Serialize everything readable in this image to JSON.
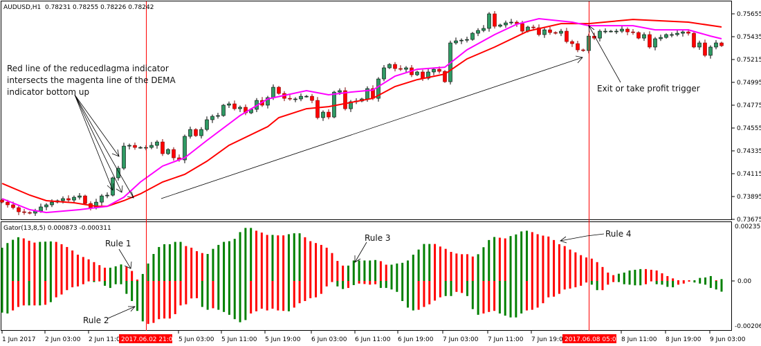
{
  "header": {
    "symbol_info": "AUDUSD,H1  0.78231 0.78255 0.78226 0.78242"
  },
  "indicator_header": {
    "label": "Gator(13,8,5) 0.000873 -0.000311"
  },
  "annotations": {
    "entry_text": [
      "Red line of the reducedlagma indicator",
      "intersects the magenta line of the DEMA",
      "indicator bottom up"
    ],
    "exit_text": "Exit or take profit trigger",
    "rule1": "Rule 1",
    "rule2": "Rule 2",
    "rule3": "Rule 3",
    "rule4": "Rule 4"
  },
  "colors": {
    "bull": "#2f9a64",
    "bear": "#ff0000",
    "reducedlagma_line": "#ff0000",
    "dema_line": "#ff00ff",
    "gator_green": "#008000",
    "gator_red": "#ff0000",
    "marker_line": "#ff0000"
  },
  "chart_data": [
    {
      "type": "candlestick",
      "title": "AUDUSD,H1",
      "price_axis_ticks": [
        "0.75655",
        "0.75435",
        "0.75215",
        "0.74995",
        "0.74775",
        "0.74555",
        "0.74335",
        "0.74115",
        "0.73895",
        "0.73675"
      ],
      "ylim": [
        0.73675,
        0.75655
      ],
      "time_axis_labels": [
        "1 Jun 2017",
        "2 Jun 03:00",
        "2 Jun 11:00",
        "5 Jun 03:00",
        "5 Jun 11:00",
        "5 Jun 19:00",
        "6 Jun 03:00",
        "6 Jun 11:00",
        "6 Jun 19:00",
        "7 Jun 03:00",
        "7 Jun 11:00",
        "7 Jun 19:00",
        "8 Jun 11:00",
        "8 Jun 19:00",
        "9 Jun 03:00"
      ],
      "highlighted_times": [
        "2017.06.02 21:00",
        "2017.06.08 05:00"
      ],
      "close": [
        0.73841,
        0.73815,
        0.73788,
        0.73748,
        0.73741,
        0.73735,
        0.73755,
        0.73795,
        0.73815,
        0.73841,
        0.73855,
        0.73875,
        0.73861,
        0.73888,
        0.73901,
        0.73828,
        0.73788,
        0.73841,
        0.73901,
        0.73908,
        0.74075,
        0.74168,
        0.74381,
        0.74388,
        0.74368,
        0.74368,
        0.74368,
        0.74388,
        0.74421,
        0.74308,
        0.74348,
        0.74268,
        0.74248,
        0.74475,
        0.74541,
        0.74481,
        0.74541,
        0.74635,
        0.74668,
        0.74675,
        0.74775,
        0.74788,
        0.74741,
        0.74755,
        0.74701,
        0.74735,
        0.74821,
        0.74775,
        0.74848,
        0.74948,
        0.74888,
        0.74841,
        0.74835,
        0.74835,
        0.74861,
        0.74861,
        0.74821,
        0.74655,
        0.74708,
        0.74661,
        0.74901,
        0.74915,
        0.74741,
        0.74808,
        0.74815,
        0.74835,
        0.74935,
        0.74841,
        0.75028,
        0.75135,
        0.75168,
        0.75128,
        0.75121,
        0.75135,
        0.75068,
        0.75095,
        0.75035,
        0.75095,
        0.75121,
        0.75101,
        0.75001,
        0.75375,
        0.75395,
        0.75401,
        0.75408,
        0.75468,
        0.75495,
        0.75515,
        0.75655,
        0.75535,
        0.75548,
        0.75568,
        0.75575,
        0.75561,
        0.75488,
        0.75528,
        0.75521,
        0.75455,
        0.75501,
        0.75475,
        0.75468,
        0.75488,
        0.75388,
        0.75368,
        0.75308,
        0.75301,
        0.75441,
        0.75421,
        0.75488,
        0.75488,
        0.75488,
        0.75488,
        0.75508,
        0.75481,
        0.75475,
        0.75421,
        0.75455,
        0.75335,
        0.75415,
        0.75428,
        0.75455,
        0.75455,
        0.75468,
        0.75481,
        0.75468,
        0.75335,
        0.75375,
        0.75255,
        0.75335,
        0.75375,
        0.75348
      ],
      "reducedlagma_line": [
        [
          0,
          0.74021
        ],
        [
          5,
          0.73908
        ],
        [
          8,
          0.73855
        ],
        [
          13,
          0.73835
        ],
        [
          17,
          0.73801
        ],
        [
          19,
          0.73801
        ],
        [
          22,
          0.73855
        ],
        [
          25,
          0.73921
        ],
        [
          29,
          0.74035
        ],
        [
          33,
          0.74108
        ],
        [
          37,
          0.74235
        ],
        [
          41,
          0.74388
        ],
        [
          48,
          0.74568
        ],
        [
          50,
          0.74655
        ],
        [
          55,
          0.74741
        ],
        [
          59,
          0.74761
        ],
        [
          63,
          0.74801
        ],
        [
          67,
          0.74841
        ],
        [
          71,
          0.74955
        ],
        [
          75,
          0.75021
        ],
        [
          80,
          0.75075
        ],
        [
          84,
          0.75221
        ],
        [
          89,
          0.75335
        ],
        [
          95,
          0.75488
        ],
        [
          101,
          0.75561
        ],
        [
          106,
          0.75561
        ],
        [
          114,
          0.75601
        ],
        [
          124,
          0.75575
        ],
        [
          130,
          0.75528
        ]
      ],
      "dema_line": [
        [
          0,
          0.73875
        ],
        [
          5,
          0.73768
        ],
        [
          8,
          0.73741
        ],
        [
          14,
          0.73768
        ],
        [
          19,
          0.73801
        ],
        [
          22,
          0.73888
        ],
        [
          25,
          0.74035
        ],
        [
          29,
          0.74188
        ],
        [
          33,
          0.74268
        ],
        [
          37,
          0.74435
        ],
        [
          43,
          0.74675
        ],
        [
          48,
          0.74835
        ],
        [
          55,
          0.74915
        ],
        [
          59,
          0.74875
        ],
        [
          63,
          0.74901
        ],
        [
          67,
          0.74921
        ],
        [
          71,
          0.75055
        ],
        [
          75,
          0.75121
        ],
        [
          80,
          0.75141
        ],
        [
          84,
          0.75308
        ],
        [
          89,
          0.75455
        ],
        [
          93,
          0.75555
        ],
        [
          97,
          0.75608
        ],
        [
          103,
          0.75575
        ],
        [
          106,
          0.75541
        ],
        [
          114,
          0.75541
        ],
        [
          118,
          0.75501
        ],
        [
          124,
          0.75501
        ],
        [
          128,
          0.75441
        ],
        [
          130,
          0.75415
        ]
      ]
    },
    {
      "type": "bar",
      "title": "Gator(13,8,5)",
      "axis_ticks": [
        "0.002351",
        "0.00",
        "-0.00206"
      ],
      "ylim": [
        -0.00206,
        0.002351
      ],
      "upper_values": [
        0.00143,
        0.00163,
        0.00177,
        0.00188,
        0.00183,
        0.00173,
        0.00165,
        0.00168,
        0.00169,
        0.0017,
        0.00168,
        0.00158,
        0.00146,
        0.00131,
        0.00113,
        0.00103,
        0.00093,
        0.00081,
        0.00068,
        0.00057,
        0.00057,
        0.00063,
        0.00071,
        0.00061,
        0.00043,
        6e-05,
        0.0003,
        0.00075,
        0.00116,
        0.00146,
        0.00158,
        0.00158,
        0.00168,
        0.00168,
        0.0015,
        0.00143,
        0.00128,
        0.0012,
        0.00116,
        0.00138,
        0.00155,
        0.00168,
        0.00171,
        0.00181,
        0.0021,
        0.00228,
        0.00228,
        0.00216,
        0.00208,
        0.00198,
        0.00198,
        0.00196,
        0.00196,
        0.00201,
        0.00205,
        0.00205,
        0.00188,
        0.00171,
        0.00163,
        0.00155,
        0.00143,
        0.0012,
        0.00086,
        0.00066,
        0.00066,
        0.00088,
        0.00088,
        0.00088,
        0.00088,
        0.0009,
        0.00085,
        0.0007,
        0.0007,
        0.00075,
        0.00078,
        0.00088,
        0.00113,
        0.00135,
        0.00159,
        0.00159,
        0.00159,
        0.00148,
        0.00138,
        0.00125,
        0.00118,
        0.00115,
        0.00115,
        0.00105,
        0.00115,
        0.00145,
        0.00176,
        0.00189,
        0.00186,
        0.00183,
        0.00193,
        0.002,
        0.00213,
        0.00216,
        0.0021,
        0.00201,
        0.00195,
        0.00191,
        0.00176,
        0.00158,
        0.0015,
        0.00135,
        0.00123,
        0.00111,
        0.00101,
        0.00096,
        0.00081,
        0.0006,
        0.00036,
        0.00025,
        0.00031,
        0.00036,
        0.00045,
        0.00048,
        0.00051,
        0.00051,
        0.00048,
        0.00045,
        0.00033,
        0.00021,
        0.00011,
        3e-05,
        3e-05,
        3e-05,
        3e-05,
        0.00013,
        0.00015,
        0.00021,
        3e-05,
        8e-05
      ],
      "upper_colors": "GGGGRRRGGGRRRRRRRRRRGGGRRRGGGGGGGGRRRRGGGGGGGGGRRRGRRGGGRRRRRRRRGGGGGGRRGGGGGGGGRRRRRRRRGGGGRRGGGGRRRRRRRRRRRRRRRRGGGGGRRRRRRRRRGGGGRG",
      "lower_values": [
        -0.00145,
        -0.00149,
        -0.00135,
        -0.00119,
        -0.00112,
        -0.00112,
        -0.00112,
        -0.00112,
        -0.00109,
        -0.00097,
        -0.00075,
        -0.00062,
        -0.00042,
        -0.00029,
        -0.00025,
        -0.00015,
        -2e-05,
        -5e-05,
        -2e-05,
        -0.00022,
        -0.00032,
        -0.00015,
        -0.00015,
        -0.00059,
        -0.00092,
        -0.00137,
        -0.00185,
        -0.00197,
        -0.00192,
        -0.00175,
        -0.00172,
        -0.00172,
        -0.00152,
        -0.00112,
        -0.00107,
        -0.0008,
        -0.00079,
        -0.00119,
        -0.00132,
        -0.00125,
        -0.00132,
        -0.00142,
        -0.00155,
        -0.00175,
        -0.00189,
        -0.00179,
        -0.00149,
        -0.00139,
        -0.00127,
        -0.00135,
        -0.00127,
        -0.00135,
        -0.00137,
        -0.00139,
        -0.00122,
        -0.00102,
        -0.00092,
        -0.00079,
        -0.00075,
        -0.00059,
        -0.00025,
        -5e-05,
        -0.00025,
        -0.00037,
        -0.00032,
        -0.00019,
        -0.00012,
        -0.00014,
        -0.00017,
        -0.00015,
        -0.00032,
        -0.00032,
        -0.00039,
        -0.0005,
        -0.00092,
        -0.00122,
        -0.00135,
        -0.00132,
        -0.00119,
        -0.00107,
        -0.0009,
        -0.00075,
        -0.00069,
        -0.00069,
        -0.0005,
        -0.00055,
        -0.00069,
        -0.00129,
        -0.00155,
        -0.00149,
        -0.00142,
        -0.00137,
        -0.00149,
        -0.00159,
        -0.00167,
        -0.00167,
        -0.00149,
        -0.00135,
        -0.00132,
        -0.00122,
        -0.00102,
        -0.00075,
        -0.00072,
        -0.00059,
        -0.00039,
        -0.00035,
        -0.00029,
        -0.00022,
        -7e-05,
        -0.00017,
        -0.00042,
        -0.00042,
        -0.00017,
        -5e-05,
        -5e-05,
        -0.00015,
        -0.00017,
        -0.0002,
        -0.0002,
        -0.00015,
        -2e-05,
        -0.00015,
        -0.00017,
        -0.00027,
        -0.00029,
        -0.00017,
        -0.00012,
        -3e-05,
        -7e-05,
        -0.00012,
        -0.00017,
        -0.00032,
        -0.00039,
        -0.00049
      ],
      "lower_colors": "GGRRRGRGRGRRRRRRRGRGGGGGGGGRRRRRRRRRRGGRGGGGGGRRRRRRRGRRRRRRRRGGRGRRRRGGGGGGGRRRRRGGRRGGGRRRGGGGGRRRRRRRRRRRRGGRRRGGGGGRRGGGGRRRGGGGGG"
    }
  ]
}
